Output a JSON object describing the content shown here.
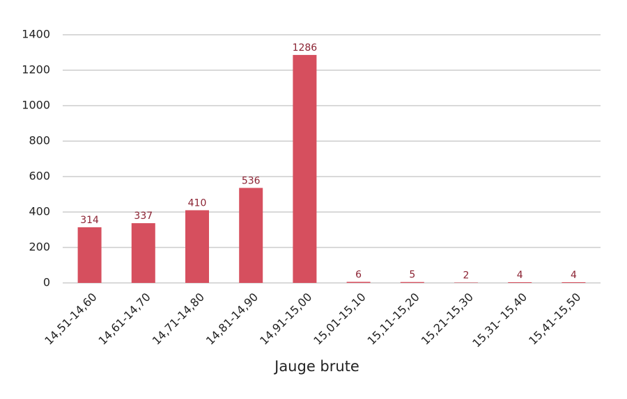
{
  "chart_data": {
    "type": "bar",
    "x_label": "Jauge brute",
    "categories": [
      "14,51-14,60",
      "14,61-14,70",
      "14,71-14,80",
      "14,81-14,90",
      "14,91-15,00",
      "15,01-15,10",
      "15,11-15,20",
      "15,21-15,30",
      "15,31- 15,40",
      "15,41-15,50"
    ],
    "values": [
      314,
      337,
      410,
      536,
      1286,
      6,
      5,
      2,
      4,
      4
    ],
    "color": "#d64f5e",
    "label_color": "#8b2232",
    "ylim": [
      0,
      1400
    ],
    "yticks": [
      0,
      200,
      400,
      600,
      800,
      1000,
      1200,
      1400
    ],
    "grid": true
  }
}
